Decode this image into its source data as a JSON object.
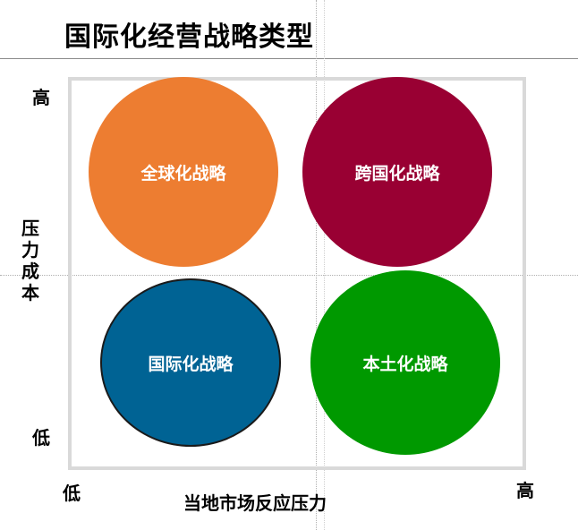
{
  "title": "国际化经营战略类型",
  "axes": {
    "y_label": "压力成本",
    "y_high": "高",
    "y_low": "低",
    "x_label": "当地市场反应压力",
    "x_low": "低",
    "x_high": "高"
  },
  "quadrants": {
    "top_left": {
      "label": "全球化战略",
      "color": "#ED7D31"
    },
    "top_right": {
      "label": "跨国化战略",
      "color": "#990033"
    },
    "bottom_left": {
      "label": "国际化战略",
      "color": "#006394"
    },
    "bottom_right": {
      "label": "本土化战略",
      "color": "#009900"
    }
  }
}
